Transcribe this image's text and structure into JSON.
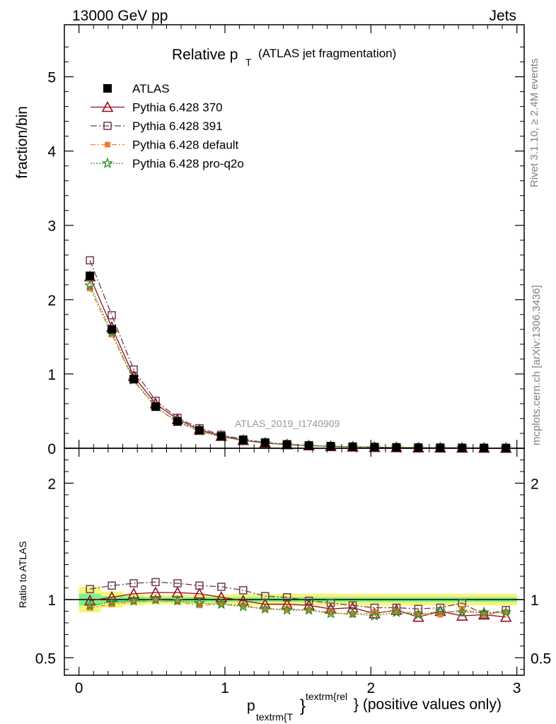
{
  "header": {
    "energy": "13000 GeV pp",
    "process": "Jets",
    "title_main": "Relative p",
    "title_sub": "T",
    "title_rest": "(ATLAS jet fragmentation)",
    "watermark": "ATLAS_2019_I1740909",
    "side_top": "Rivet 3.1.10, ≥ 2.4M events",
    "side_bottom": "mcplots.cern.ch [arXiv:1306.3436]"
  },
  "axes": {
    "ylabel_top": "fraction/bin",
    "ylabel_bottom": "Ratio to ATLAS",
    "xlabel_p": "p",
    "xlabel_sub": "textrm{T",
    "xlabel_sup": "textrm{rel",
    "xlabel_brace": "}",
    "xlabel_rest": "} (positive values only)",
    "top_ticks": [
      "0",
      "1",
      "2",
      "3",
      "4",
      "5"
    ],
    "ratio_ticks": [
      "0.5",
      "1",
      "2"
    ],
    "x_ticks": [
      "0",
      "1",
      "2",
      "3"
    ]
  },
  "chart_data": {
    "type": "line",
    "title": "Relative pT (ATLAS jet fragmentation)",
    "xlabel": "ptextrm{T}^textrm{rel} (positive values only)",
    "ylabel": "fraction/bin",
    "xlim": [
      -0.1,
      3.05
    ],
    "ylim": [
      0,
      5.7
    ],
    "ratio_ylim": [
      0.35,
      2.3
    ],
    "legend_position": "top-left",
    "x": [
      0.075,
      0.225,
      0.375,
      0.525,
      0.675,
      0.825,
      0.975,
      1.125,
      1.275,
      1.425,
      1.575,
      1.725,
      1.875,
      2.025,
      2.175,
      2.325,
      2.475,
      2.625,
      2.775,
      2.925
    ],
    "series": [
      {
        "name": "ATLAS",
        "color": "#000000",
        "values": [
          2.32,
          1.6,
          0.93,
          0.56,
          0.36,
          0.24,
          0.16,
          0.11,
          0.075,
          0.052,
          0.038,
          0.028,
          0.021,
          0.016,
          0.012,
          0.009,
          0.007,
          0.0055,
          0.0045,
          0.0035
        ],
        "ratio": [
          1,
          1,
          1,
          1,
          1,
          1,
          1,
          1,
          1,
          1,
          1,
          1,
          1,
          1,
          1,
          1,
          1,
          1,
          1,
          1
        ]
      },
      {
        "name": "Pythia 6.428 370",
        "color": "#9c0b1c",
        "values": [
          2.31,
          1.63,
          0.97,
          0.6,
          0.39,
          0.25,
          0.165,
          0.108,
          0.072,
          0.05,
          0.036,
          0.026,
          0.019,
          0.014,
          0.011,
          0.0078,
          0.0063,
          0.0048,
          0.0039,
          0.003
        ],
        "ratio": [
          0.99,
          1.02,
          1.05,
          1.06,
          1.06,
          1.05,
          1.02,
          0.99,
          0.96,
          0.96,
          0.95,
          0.92,
          0.93,
          0.88,
          0.91,
          0.85,
          0.9,
          0.86,
          0.87,
          0.85
        ]
      },
      {
        "name": "Pythia 6.428 391",
        "color": "#6e3a50",
        "values": [
          2.53,
          1.79,
          1.06,
          0.64,
          0.41,
          0.27,
          0.18,
          0.12,
          0.079,
          0.054,
          0.038,
          0.027,
          0.02,
          0.015,
          0.011,
          0.0085,
          0.0065,
          0.0053,
          0.004,
          0.0032
        ],
        "ratio": [
          1.09,
          1.12,
          1.14,
          1.15,
          1.14,
          1.12,
          1.11,
          1.08,
          1.03,
          1.02,
          0.99,
          0.97,
          0.95,
          0.93,
          0.93,
          0.92,
          0.93,
          0.97,
          0.87,
          0.91
        ]
      },
      {
        "name": "Pythia 6.428 default",
        "color": "#f37d2f",
        "values": [
          2.15,
          1.53,
          0.91,
          0.55,
          0.35,
          0.23,
          0.154,
          0.104,
          0.069,
          0.048,
          0.034,
          0.025,
          0.018,
          0.014,
          0.011,
          0.0079,
          0.0061,
          0.0051,
          0.0039,
          0.0031
        ],
        "ratio": [
          0.93,
          0.96,
          0.98,
          0.99,
          0.98,
          0.95,
          0.96,
          0.95,
          0.92,
          0.92,
          0.91,
          0.89,
          0.87,
          0.89,
          0.9,
          0.88,
          0.87,
          0.92,
          0.87,
          0.89
        ]
      },
      {
        "name": "Pythia 6.428 pro-q2o",
        "color": "#2f8d2f",
        "values": [
          2.19,
          1.56,
          0.92,
          0.56,
          0.36,
          0.235,
          0.155,
          0.103,
          0.069,
          0.048,
          0.035,
          0.025,
          0.018,
          0.0138,
          0.0107,
          0.0078,
          0.0063,
          0.005,
          0.004,
          0.0031
        ],
        "ratio": [
          0.95,
          0.98,
          0.99,
          1.0,
          0.99,
          0.97,
          0.96,
          0.94,
          0.92,
          0.91,
          0.91,
          0.88,
          0.88,
          0.86,
          0.89,
          0.87,
          0.9,
          0.89,
          0.89,
          0.89
        ]
      }
    ],
    "uncertainty_bands": {
      "stat_color": "#7cf08c",
      "total_color": "#f5f57a",
      "stat": [
        0.05,
        0.03,
        0.025,
        0.02,
        0.02,
        0.02,
        0.02,
        0.02,
        0.02,
        0.02,
        0.02,
        0.02,
        0.02,
        0.02,
        0.02,
        0.02,
        0.02,
        0.02,
        0.02,
        0.02
      ],
      "total": [
        0.11,
        0.07,
        0.05,
        0.04,
        0.04,
        0.04,
        0.04,
        0.05,
        0.05,
        0.05,
        0.05,
        0.05,
        0.05,
        0.05,
        0.05,
        0.05,
        0.05,
        0.05,
        0.05,
        0.05
      ]
    }
  }
}
